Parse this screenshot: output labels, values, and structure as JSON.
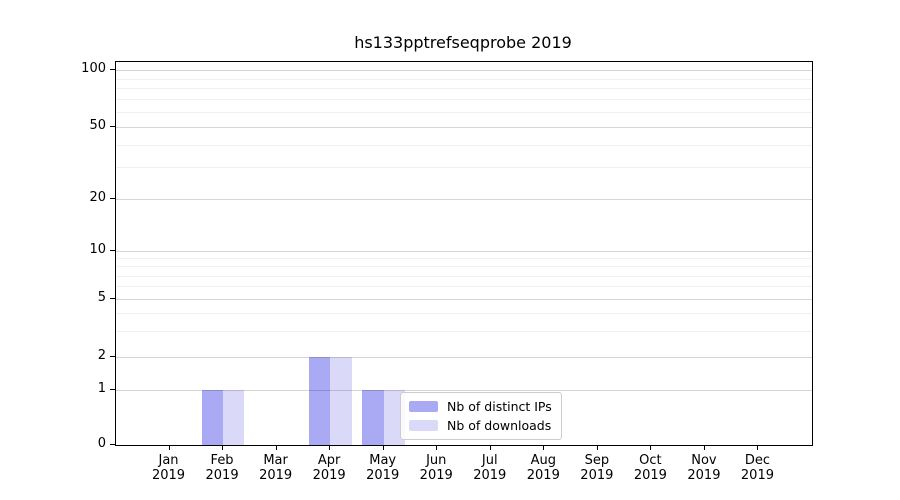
{
  "chart_data": {
    "type": "bar",
    "title": "hs133pptrefseqprobe 2019",
    "categories": [
      "Jan",
      "Feb",
      "Mar",
      "Apr",
      "May",
      "Jun",
      "Jul",
      "Aug",
      "Sep",
      "Oct",
      "Nov",
      "Dec"
    ],
    "category_year": "2019",
    "series": [
      {
        "name": "Nb of distinct IPs",
        "color": "#a9a9f4",
        "values": [
          0,
          1,
          0,
          2,
          1,
          0,
          0,
          0,
          0,
          0,
          0,
          0
        ]
      },
      {
        "name": "Nb of downloads",
        "color": "#dadaf8",
        "values": [
          0,
          1,
          0,
          2,
          1,
          0,
          0,
          0,
          0,
          0,
          0,
          0
        ]
      }
    ],
    "yticks": [
      0,
      1,
      2,
      5,
      10,
      20,
      50,
      100
    ],
    "y_minor_gridlines": [
      3,
      4,
      6,
      7,
      8,
      9,
      30,
      40,
      60,
      70,
      80,
      90
    ],
    "scale": "symlog",
    "ylim": [
      0,
      100
    ],
    "grid": true,
    "legend": {
      "entries": [
        "Nb of distinct IPs",
        "Nb of downloads"
      ],
      "position": "lower right of center"
    }
  },
  "colors": {
    "bar_primary": "#a9a9f4",
    "bar_secondary": "#dadaf8",
    "grid_major": "#d6d6d6",
    "grid_minor": "#f0f0f0",
    "axis": "#000000",
    "legend_border": "#cccccc",
    "background": "#ffffff"
  }
}
